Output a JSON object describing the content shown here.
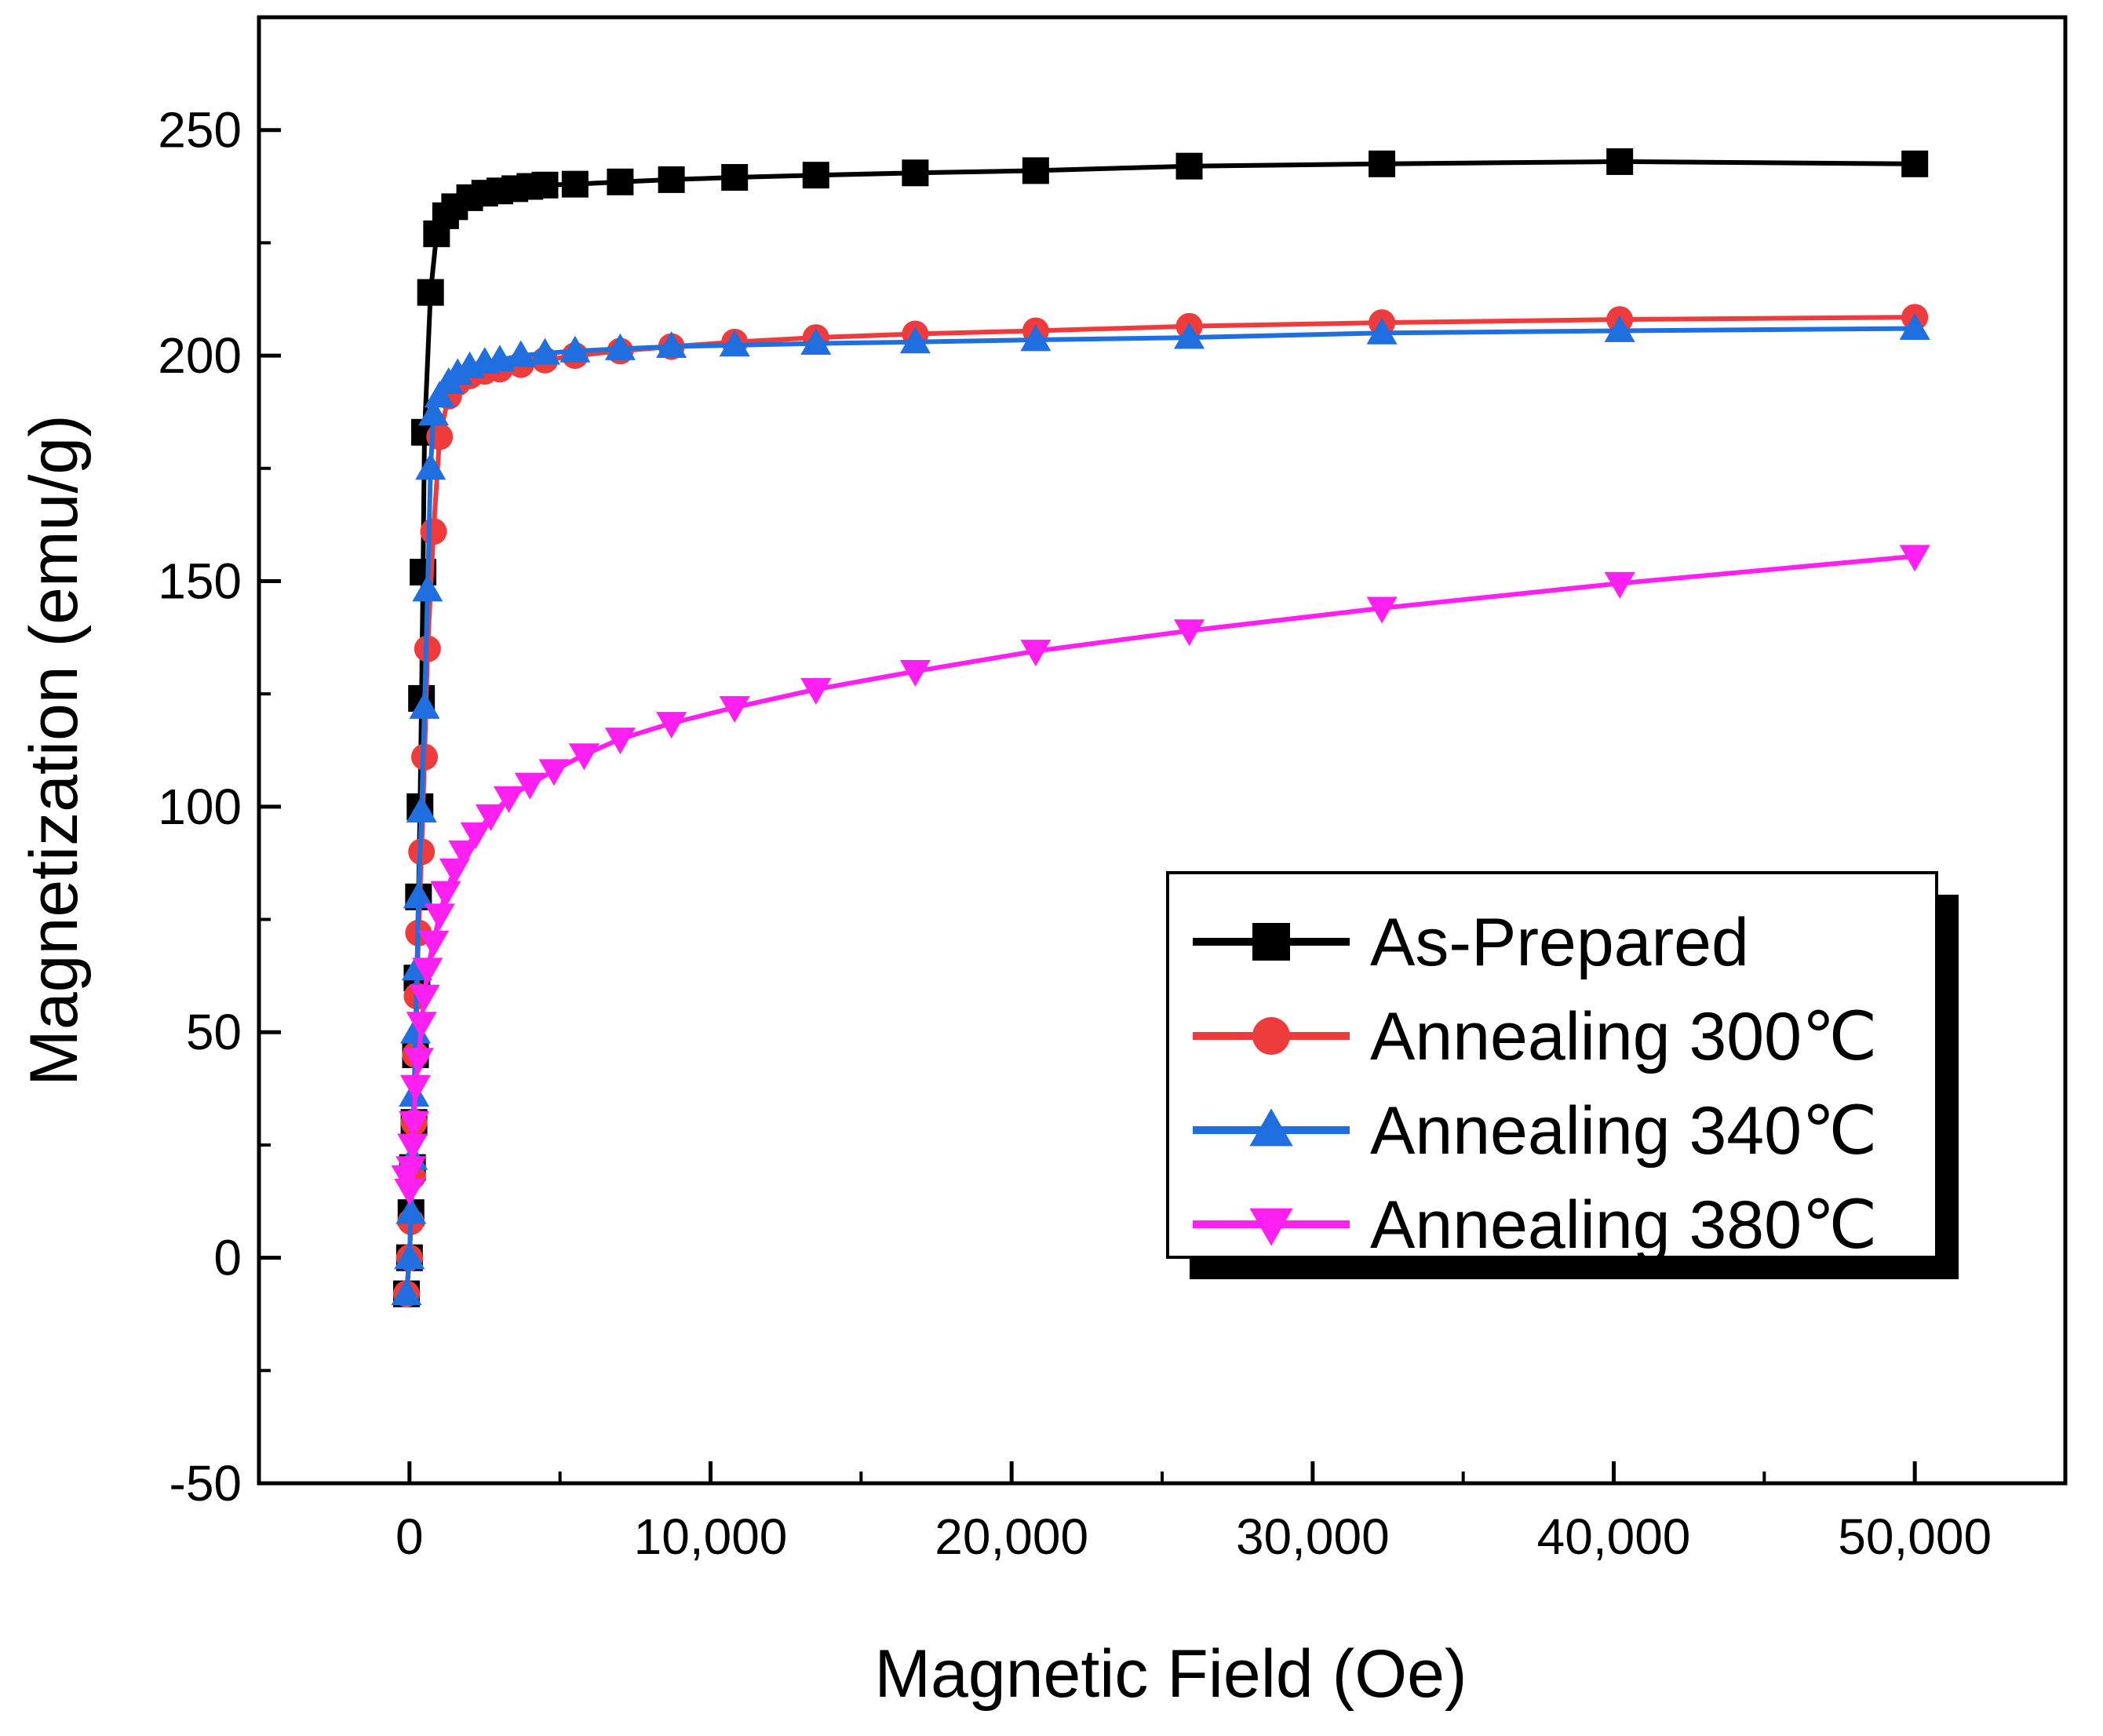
{
  "chart_data": {
    "type": "line",
    "title": "",
    "xlabel": "Magnetic Field (Oe)",
    "ylabel": "Magnetization (emu/g)",
    "xlim": [
      -5000,
      55000
    ],
    "ylim": [
      -50,
      275
    ],
    "x_ticks": [
      0,
      10000,
      20000,
      30000,
      40000,
      50000
    ],
    "x_tick_labels": [
      "0",
      "10,000",
      "20,000",
      "30,000",
      "40,000",
      "50,000"
    ],
    "y_ticks": [
      -50,
      0,
      50,
      100,
      150,
      200,
      250
    ],
    "y_tick_labels": [
      "-50",
      "0",
      "50",
      "100",
      "150",
      "200",
      "250"
    ],
    "grid": false,
    "legend_position": "right",
    "series": [
      {
        "name": "As-Prepared",
        "color": "#000000",
        "marker": "square",
        "points": [
          [
            -100,
            -8
          ],
          [
            0,
            0
          ],
          [
            50,
            10
          ],
          [
            100,
            20
          ],
          [
            150,
            30
          ],
          [
            200,
            45
          ],
          [
            250,
            62
          ],
          [
            300,
            80
          ],
          [
            350,
            100
          ],
          [
            400,
            124
          ],
          [
            450,
            152
          ],
          [
            500,
            183
          ],
          [
            700,
            214
          ],
          [
            900,
            227
          ],
          [
            1200,
            231
          ],
          [
            1500,
            233
          ],
          [
            2000,
            235
          ],
          [
            2500,
            236
          ],
          [
            3000,
            236.5
          ],
          [
            3500,
            237
          ],
          [
            4000,
            237.5
          ],
          [
            4500,
            237.8
          ],
          [
            5500,
            238
          ],
          [
            7000,
            238.5
          ],
          [
            8700,
            239
          ],
          [
            10800,
            239.5
          ],
          [
            13500,
            240
          ],
          [
            16800,
            240.5
          ],
          [
            20800,
            241
          ],
          [
            25900,
            242
          ],
          [
            32300,
            242.5
          ],
          [
            40200,
            243
          ],
          [
            50000,
            242.5
          ]
        ]
      },
      {
        "name": "Annealing 300℃",
        "color": "#ef3b3b",
        "marker": "circle",
        "points": [
          [
            -100,
            -8
          ],
          [
            0,
            0
          ],
          [
            50,
            8
          ],
          [
            100,
            18
          ],
          [
            150,
            30
          ],
          [
            200,
            45
          ],
          [
            250,
            58
          ],
          [
            300,
            72
          ],
          [
            400,
            90
          ],
          [
            500,
            111
          ],
          [
            600,
            135
          ],
          [
            800,
            161
          ],
          [
            1000,
            182
          ],
          [
            1300,
            191
          ],
          [
            1600,
            194
          ],
          [
            2000,
            195.5
          ],
          [
            2500,
            196.5
          ],
          [
            3000,
            197
          ],
          [
            3700,
            198
          ],
          [
            4500,
            199
          ],
          [
            5500,
            200
          ],
          [
            7000,
            201
          ],
          [
            8700,
            202
          ],
          [
            10800,
            203
          ],
          [
            13500,
            204
          ],
          [
            16800,
            204.8
          ],
          [
            20800,
            205.5
          ],
          [
            25900,
            206.5
          ],
          [
            32300,
            207.3
          ],
          [
            40200,
            208
          ],
          [
            50000,
            208.5
          ]
        ]
      },
      {
        "name": "Annealing 340℃",
        "color": "#1f6fe0",
        "marker": "triangle-up",
        "points": [
          [
            -100,
            -8
          ],
          [
            0,
            0
          ],
          [
            50,
            10
          ],
          [
            100,
            22
          ],
          [
            150,
            36
          ],
          [
            200,
            50
          ],
          [
            250,
            64
          ],
          [
            300,
            80
          ],
          [
            400,
            99
          ],
          [
            500,
            122
          ],
          [
            600,
            148
          ],
          [
            700,
            175
          ],
          [
            800,
            187
          ],
          [
            1000,
            191
          ],
          [
            1300,
            194
          ],
          [
            1600,
            196
          ],
          [
            2000,
            197.5
          ],
          [
            2500,
            198.5
          ],
          [
            3000,
            199
          ],
          [
            3700,
            200
          ],
          [
            4500,
            200.5
          ],
          [
            5500,
            201
          ],
          [
            7000,
            201.5
          ],
          [
            8700,
            202
          ],
          [
            10800,
            202.3
          ],
          [
            13500,
            202.7
          ],
          [
            16800,
            203
          ],
          [
            20800,
            203.5
          ],
          [
            25900,
            204
          ],
          [
            32300,
            205
          ],
          [
            40200,
            205.5
          ],
          [
            50000,
            206
          ]
        ]
      },
      {
        "name": "Annealing 380℃",
        "color": "#ff1ff0",
        "marker": "triangle-down",
        "points": [
          [
            -100,
            18
          ],
          [
            0,
            15
          ],
          [
            50,
            20
          ],
          [
            100,
            25
          ],
          [
            150,
            30
          ],
          [
            200,
            38
          ],
          [
            300,
            44
          ],
          [
            400,
            52
          ],
          [
            500,
            58
          ],
          [
            600,
            64
          ],
          [
            800,
            70
          ],
          [
            1000,
            76
          ],
          [
            1200,
            81
          ],
          [
            1500,
            86
          ],
          [
            1800,
            90
          ],
          [
            2200,
            94
          ],
          [
            2700,
            98
          ],
          [
            3300,
            102
          ],
          [
            4000,
            105
          ],
          [
            4800,
            108
          ],
          [
            5800,
            111.5
          ],
          [
            7000,
            115
          ],
          [
            8700,
            118.5
          ],
          [
            10800,
            122
          ],
          [
            13500,
            126
          ],
          [
            16800,
            130
          ],
          [
            20800,
            134.5
          ],
          [
            25900,
            139
          ],
          [
            32300,
            144
          ],
          [
            40200,
            149.5
          ],
          [
            50000,
            155.5
          ]
        ]
      }
    ]
  }
}
